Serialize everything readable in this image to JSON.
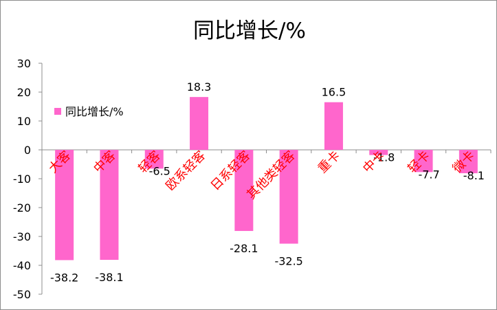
{
  "chart_data": {
    "type": "bar",
    "title": "同比增长/%",
    "xlabel": "",
    "ylabel": "",
    "ylim": [
      -50,
      30
    ],
    "yticks": [
      30,
      20,
      10,
      0,
      -10,
      -20,
      -30,
      -40,
      -50
    ],
    "grid": false,
    "legend_position": "top-left",
    "bar_color": "#ff66cc",
    "category_color": "#ff0000",
    "categories": [
      "大客",
      "中客",
      "轻客",
      "欧系轻客",
      "日系轻客",
      "其他类轻客",
      "重卡",
      "中卡",
      "轻卡",
      "微卡"
    ],
    "series": [
      {
        "name": "同比增长/%",
        "values": [
          -38.2,
          -38.1,
          -6.5,
          18.3,
          -28.1,
          -32.5,
          16.5,
          -1.8,
          -7.7,
          -8.1
        ],
        "labels": [
          "-38.2",
          "-38.1",
          "-6.5",
          "18.3",
          "-28.1",
          "-32.5",
          "16.5",
          "-1.8",
          "-7.7",
          "-8.1"
        ]
      }
    ]
  }
}
